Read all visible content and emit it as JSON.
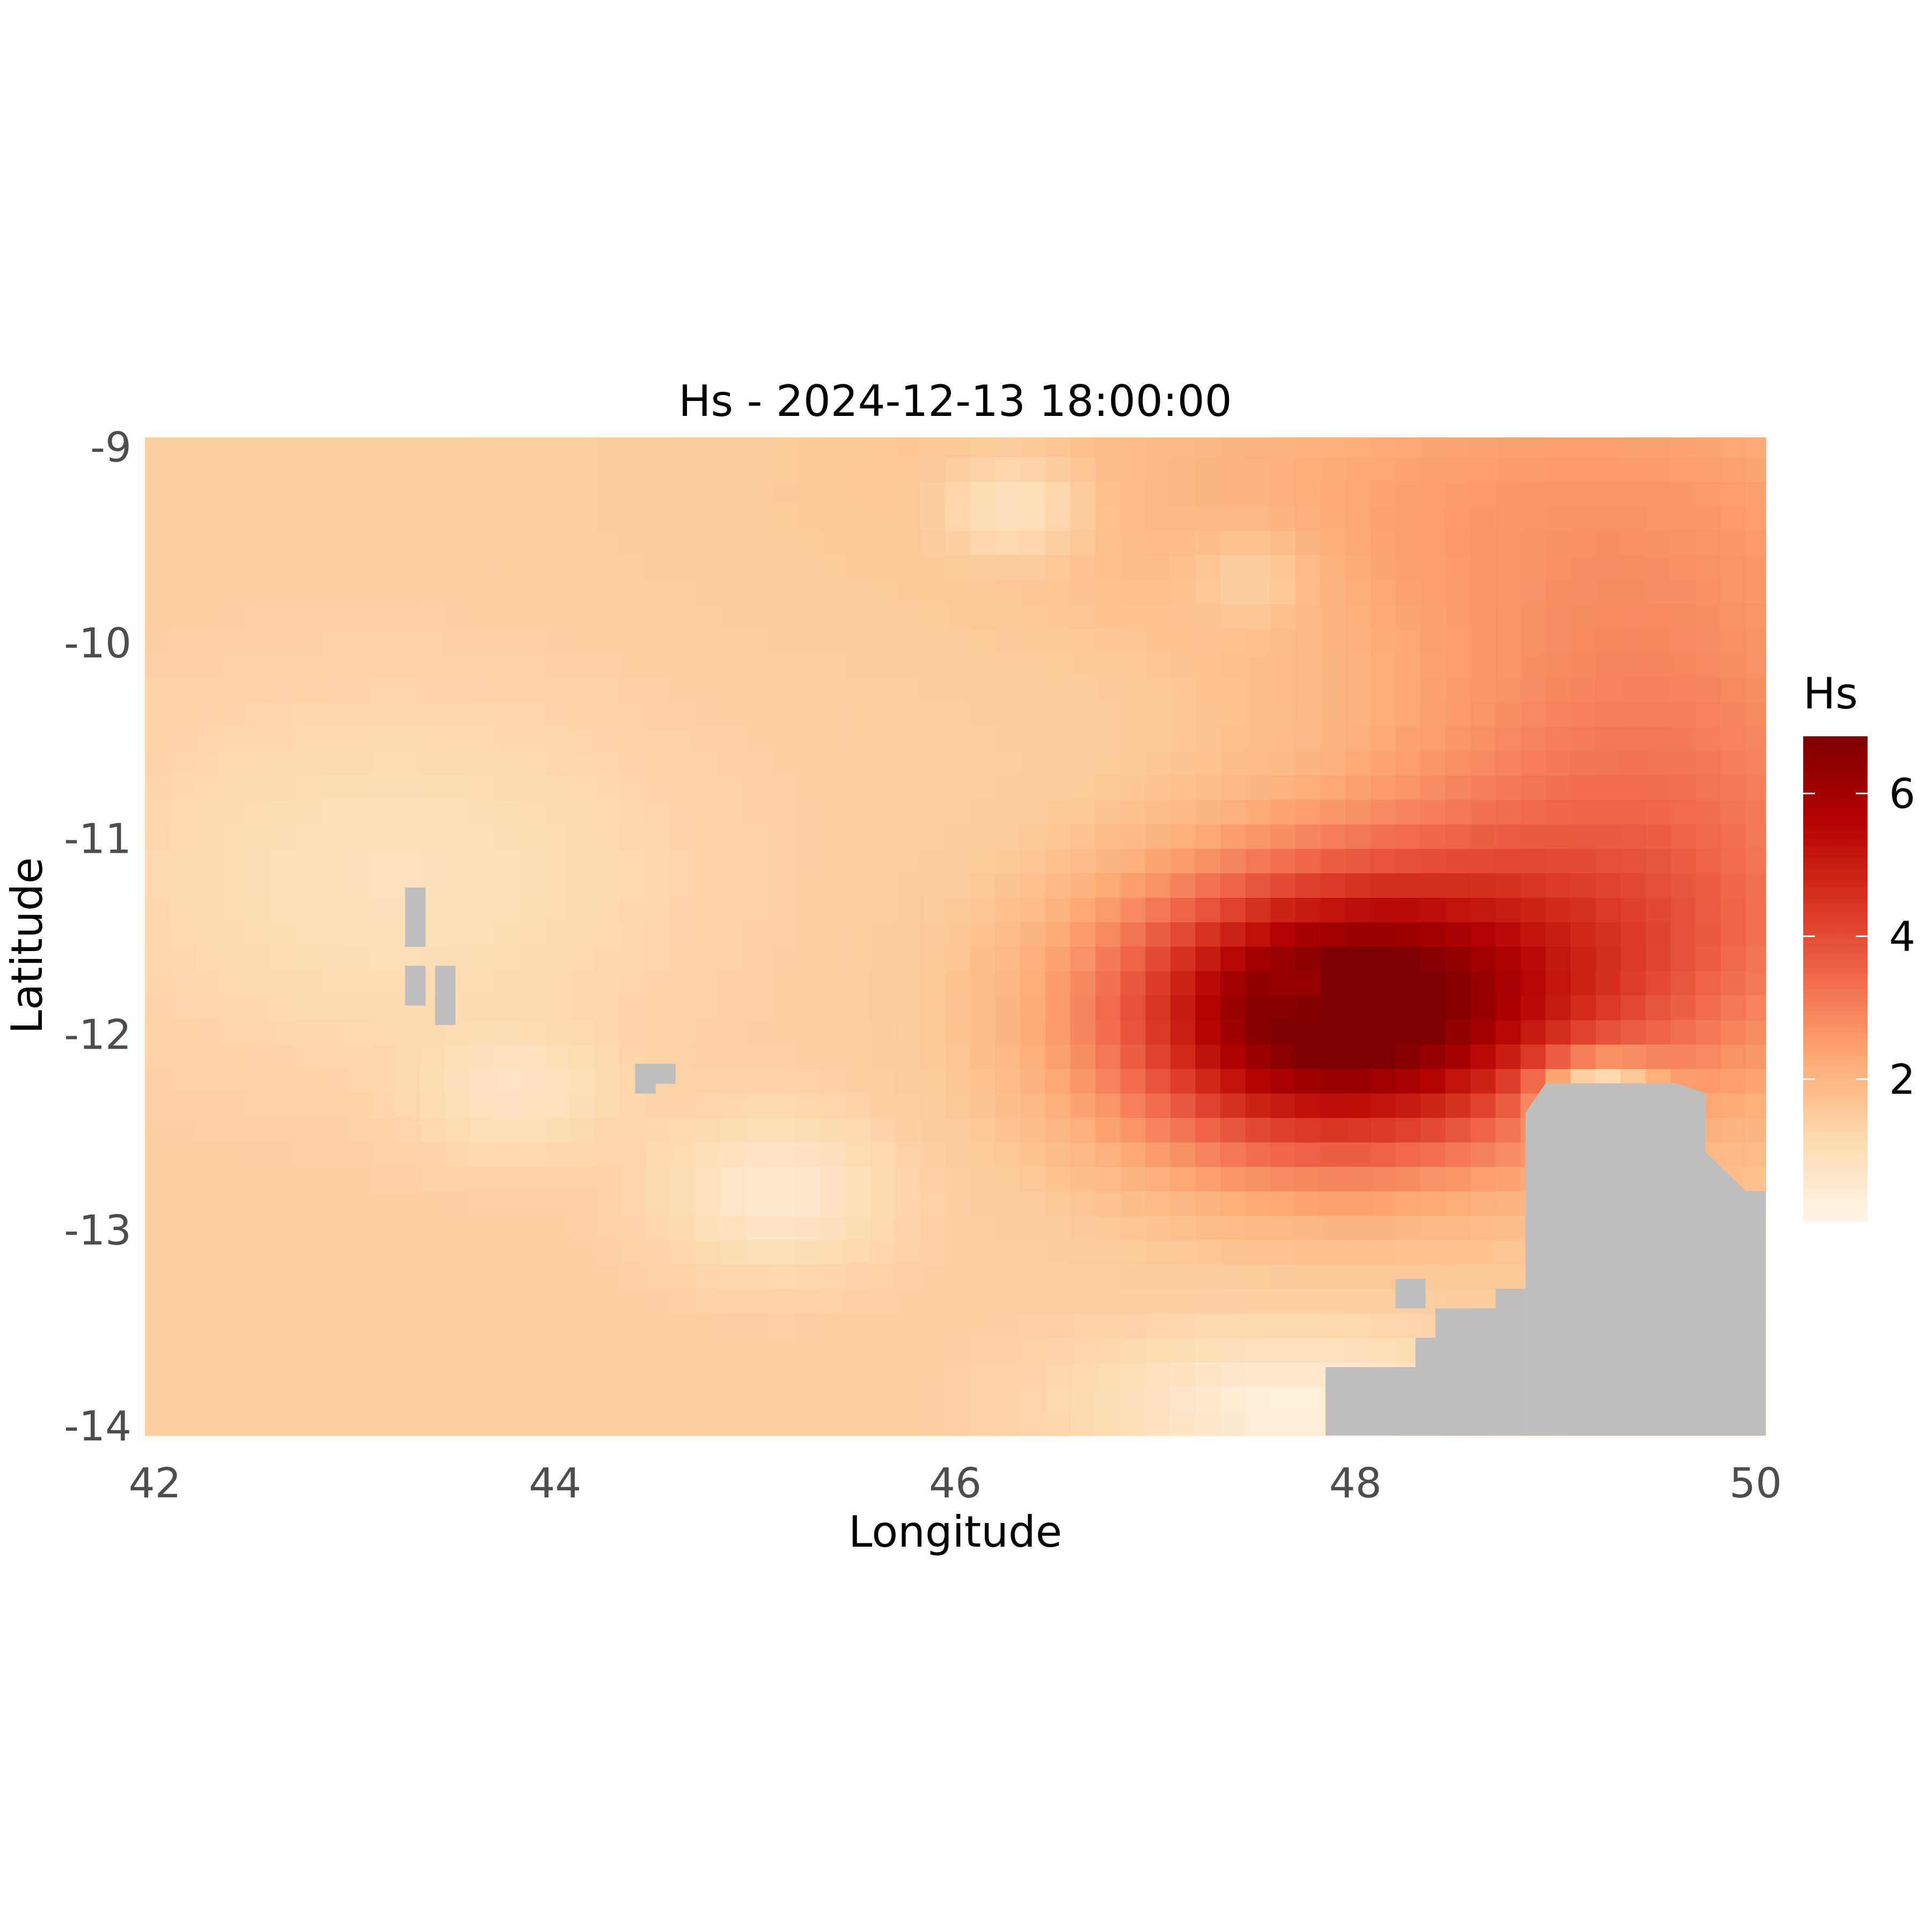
{
  "chart_data": {
    "type": "heatmap",
    "title": "Hs - 2024-12-13 18:00:00",
    "xlabel": "Longitude",
    "ylabel": "Latitude",
    "xlim": [
      41.95,
      50.05
    ],
    "ylim": [
      -14.05,
      -8.95
    ],
    "x_ticks": [
      42,
      44,
      46,
      48,
      50
    ],
    "y_ticks": [
      -9,
      -10,
      -11,
      -12,
      -13,
      -14
    ],
    "x_tick_labels": [
      "42",
      "44",
      "46",
      "48",
      "50"
    ],
    "y_tick_labels": [
      "-9",
      "-10",
      "-11",
      "-12",
      "-13",
      "-14"
    ],
    "grid": true,
    "value_range": [
      0,
      6.8
    ],
    "color_scale": [
      "#fff5eb",
      "#fddbb0",
      "#fdab73",
      "#f16b4a",
      "#d7301f",
      "#b30000",
      "#7f0000"
    ],
    "na_color": "#bebebe",
    "legend": {
      "title": "Hs",
      "placement": "right",
      "ticks": [
        2,
        4,
        6
      ],
      "tick_labels": [
        "2",
        "4",
        "6"
      ]
    },
    "field": {
      "background": 1.4,
      "hotspots": [
        {
          "lon": 47.85,
          "lat": -11.95,
          "amp": 4.9,
          "rx": 1.05,
          "ry": 0.7
        },
        {
          "lon": 48.35,
          "lat": -11.65,
          "amp": 1.2,
          "rx": 1.4,
          "ry": 0.6
        },
        {
          "lon": 49.4,
          "lat": -11.4,
          "amp": 1.6,
          "rx": 1.3,
          "ry": 1.1
        },
        {
          "lon": 49.5,
          "lat": -10.0,
          "amp": 1.0,
          "rx": 1.6,
          "ry": 1.4
        },
        {
          "lon": 48.1,
          "lat": -9.2,
          "amp": 0.6,
          "rx": 2.5,
          "ry": 0.8
        }
      ],
      "calm_spots": [
        {
          "lon": 46.3,
          "lat": -9.3,
          "amp": -0.9,
          "rx": 0.35,
          "ry": 0.25
        },
        {
          "lon": 47.5,
          "lat": -9.65,
          "amp": -0.6,
          "rx": 0.3,
          "ry": 0.25
        },
        {
          "lon": 45.1,
          "lat": -12.8,
          "amp": -0.9,
          "rx": 0.5,
          "ry": 0.35
        },
        {
          "lon": 43.8,
          "lat": -12.3,
          "amp": -0.6,
          "rx": 0.45,
          "ry": 0.3
        },
        {
          "lon": 47.7,
          "lat": -13.9,
          "amp": -1.1,
          "rx": 0.9,
          "ry": 0.35
        },
        {
          "lon": 49.2,
          "lat": -12.3,
          "amp": -2.5,
          "rx": 0.3,
          "ry": 0.2
        },
        {
          "lon": 43.2,
          "lat": -11.2,
          "amp": -0.5,
          "rx": 1.2,
          "ry": 0.8
        }
      ],
      "land_cells": [
        [
          43.3,
          -11.3
        ],
        [
          43.3,
          -11.4
        ],
        [
          43.3,
          -11.5
        ],
        [
          43.3,
          -11.7
        ],
        [
          43.3,
          -11.8
        ],
        [
          43.45,
          -11.7
        ],
        [
          43.45,
          -11.8
        ],
        [
          43.45,
          -11.9
        ],
        [
          44.45,
          -12.2
        ],
        [
          44.55,
          -12.2
        ],
        [
          44.45,
          -12.25
        ]
      ],
      "land_polygons": [
        [
          [
            48.85,
            -14.05
          ],
          [
            48.85,
            -13.2
          ],
          [
            48.85,
            -12.4
          ],
          [
            48.95,
            -12.25
          ],
          [
            49.6,
            -12.25
          ],
          [
            49.75,
            -12.3
          ],
          [
            49.75,
            -12.6
          ],
          [
            49.85,
            -12.7
          ],
          [
            49.95,
            -12.8
          ],
          [
            50.05,
            -12.8
          ],
          [
            50.05,
            -14.05
          ]
        ],
        [
          [
            47.85,
            -14.05
          ],
          [
            47.85,
            -13.7
          ],
          [
            48.3,
            -13.7
          ],
          [
            48.3,
            -13.55
          ],
          [
            48.4,
            -13.55
          ],
          [
            48.4,
            -13.4
          ],
          [
            48.7,
            -13.4
          ],
          [
            48.7,
            -13.3
          ],
          [
            48.85,
            -13.3
          ],
          [
            48.85,
            -14.05
          ]
        ],
        [
          [
            48.2,
            -13.4
          ],
          [
            48.35,
            -13.4
          ],
          [
            48.35,
            -13.25
          ],
          [
            48.2,
            -13.25
          ]
        ]
      ]
    }
  }
}
